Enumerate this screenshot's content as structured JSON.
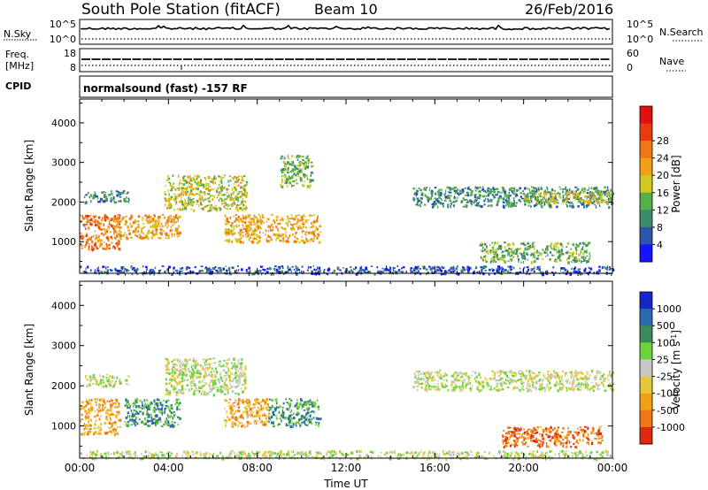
{
  "header": {
    "station": "South Pole Station (fitACF)",
    "beam": "Beam 10",
    "date": "26/Feb/2016"
  },
  "status_panels": {
    "nsky_label": "N.Sky",
    "nsky_ticks": [
      "10^5",
      "10^0"
    ],
    "nsearch_label": "N.Search",
    "nsearch_ticks": [
      "10^5",
      "10^0"
    ],
    "freq_label": "Freq.",
    "freq_unit": "[MHz]",
    "freq_ticks": [
      "18",
      "8"
    ],
    "nave_label": "Nave",
    "nave_ticks": [
      "60",
      "0"
    ],
    "cpid_label": "CPID",
    "cpid_value": "normalsound (fast) -157 RF"
  },
  "chart_data": [
    {
      "type": "heatmap",
      "panel": "power",
      "ylabel": "Slant Range [km]",
      "ylim": [
        200,
        4600
      ],
      "yticks": [
        "1000",
        "2000",
        "3000",
        "4000"
      ],
      "xlim_hours": [
        0,
        24
      ],
      "colorbar_label": "Power [dB]",
      "colorbar_ticks": [
        "4",
        "8",
        "12",
        "16",
        "20",
        "24",
        "28"
      ],
      "colorbar_colors": [
        "#1414ff",
        "#2a55a8",
        "#3d8a6c",
        "#55b04a",
        "#d2c81e",
        "#f0a014",
        "#f07814",
        "#e83c10",
        "#e01010"
      ],
      "echo_regions": [
        {
          "t_start": 0.2,
          "t_end": 2.2,
          "r_start": 2000,
          "r_end": 2300,
          "level": 2
        },
        {
          "t_start": 0.0,
          "t_end": 1.8,
          "r_start": 800,
          "r_end": 1700,
          "level": 6
        },
        {
          "t_start": 1.5,
          "t_end": 4.5,
          "r_start": 1100,
          "r_end": 1700,
          "level": 5
        },
        {
          "t_start": 3.8,
          "t_end": 7.5,
          "r_start": 1800,
          "r_end": 2700,
          "level": 4
        },
        {
          "t_start": 6.5,
          "t_end": 10.8,
          "r_start": 1000,
          "r_end": 1700,
          "level": 5
        },
        {
          "t_start": 9.0,
          "t_end": 10.5,
          "r_start": 2400,
          "r_end": 3200,
          "level": 3
        },
        {
          "t_start": 15.0,
          "t_end": 24.0,
          "r_start": 1900,
          "r_end": 2400,
          "level": 2
        },
        {
          "t_start": 20.0,
          "t_end": 24.0,
          "r_start": 2000,
          "r_end": 2300,
          "level": 4
        },
        {
          "t_start": 18.0,
          "t_end": 23.0,
          "r_start": 500,
          "r_end": 1000,
          "level": 3
        },
        {
          "t_start": 0.0,
          "t_end": 24.0,
          "r_start": 200,
          "r_end": 400,
          "level": 1
        }
      ]
    },
    {
      "type": "heatmap",
      "panel": "velocity",
      "ylabel": "Slant Range [km]",
      "ylim": [
        200,
        4600
      ],
      "yticks": [
        "1000",
        "2000",
        "3000",
        "4000"
      ],
      "xlim_hours": [
        0,
        24
      ],
      "xlabel": "Time UT",
      "xticks": [
        "00:00",
        "04:00",
        "08:00",
        "12:00",
        "16:00",
        "20:00",
        "00:00"
      ],
      "colorbar_label": "Velocity [m s",
      "colorbar_label_exp": "-1",
      "colorbar_label_close": "]",
      "colorbar_ticks": [
        "1000",
        "500",
        "100",
        "25",
        "-25",
        "-100",
        "-500",
        "-1000"
      ],
      "colorbar_colors": [
        "#1428c8",
        "#2a6ab0",
        "#3c8a5a",
        "#6ed23c",
        "#c8c8c8",
        "#e6c83c",
        "#f0a014",
        "#f07814",
        "#e02814"
      ],
      "echo_regions": [
        {
          "t_start": 0.2,
          "t_end": 2.2,
          "r_start": 2000,
          "r_end": 2300,
          "level": 4
        },
        {
          "t_start": 0.0,
          "t_end": 1.8,
          "r_start": 800,
          "r_end": 1700,
          "level": 6
        },
        {
          "t_start": 2.0,
          "t_end": 4.5,
          "r_start": 1000,
          "r_end": 1700,
          "level": 2
        },
        {
          "t_start": 3.8,
          "t_end": 7.5,
          "r_start": 1800,
          "r_end": 2700,
          "level": 4
        },
        {
          "t_start": 6.5,
          "t_end": 8.5,
          "r_start": 1000,
          "r_end": 1700,
          "level": 6
        },
        {
          "t_start": 8.5,
          "t_end": 10.8,
          "r_start": 1000,
          "r_end": 1700,
          "level": 2
        },
        {
          "t_start": 15.0,
          "t_end": 24.0,
          "r_start": 1900,
          "r_end": 2400,
          "level": 4
        },
        {
          "t_start": 19.0,
          "t_end": 23.5,
          "r_start": 500,
          "r_end": 1000,
          "level": 7
        },
        {
          "t_start": 0.0,
          "t_end": 24.0,
          "r_start": 200,
          "r_end": 400,
          "level": 4
        }
      ]
    }
  ]
}
